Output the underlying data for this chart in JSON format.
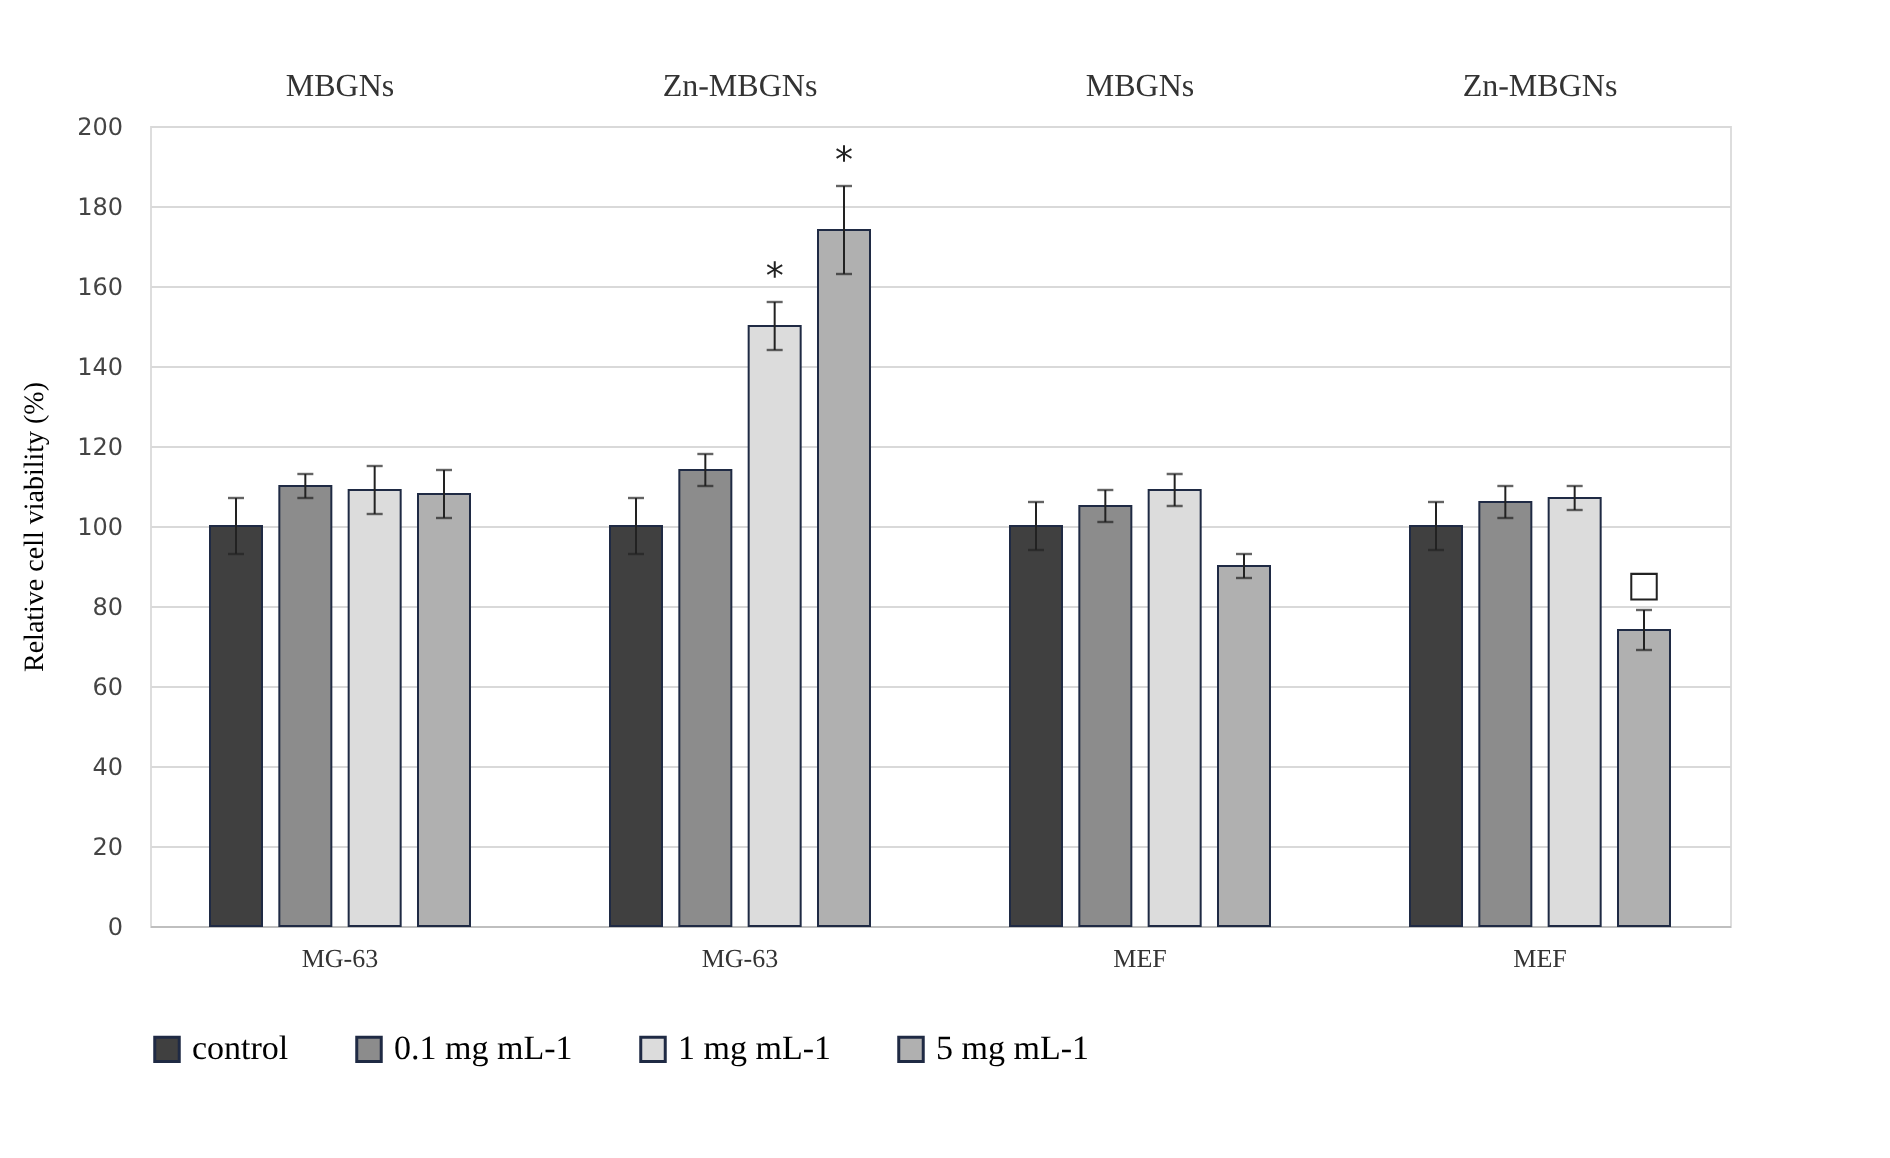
{
  "chart_data": {
    "type": "bar",
    "ylabel": "Relative cell viability (%)",
    "categories": [
      "MG-63",
      "MG-63",
      "MEF",
      "MEF"
    ],
    "series": [
      {
        "name": "control",
        "color": "#404040",
        "values": [
          100,
          100,
          100,
          100
        ],
        "errors": [
          7,
          7,
          6,
          6
        ]
      },
      {
        "name": "0.1 mg mL-1",
        "color": "#8c8c8c",
        "values": [
          110,
          114,
          105,
          106
        ],
        "errors": [
          3,
          4,
          4,
          4
        ]
      },
      {
        "name": "1 mg mL-1",
        "color": "#dcdcdc",
        "values": [
          109,
          150,
          109,
          107
        ],
        "errors": [
          6,
          6,
          4,
          3
        ],
        "value_labels": [
          null,
          "*",
          null,
          null
        ]
      },
      {
        "name": "5 mg mL-1",
        "color": "#b0b0b0",
        "values": [
          108,
          174,
          90,
          74
        ],
        "errors": [
          6,
          11,
          3,
          5
        ],
        "value_labels": [
          null,
          "*",
          null,
          "□"
        ]
      }
    ],
    "ylim": [
      0,
      200
    ],
    "yticks": [
      0,
      20,
      40,
      60,
      80,
      100,
      120,
      140,
      160,
      180,
      200
    ],
    "grid": "y",
    "legend": "bottom",
    "annotations": [
      "MBGNs",
      "Zn-MBGNs",
      "MBGNs",
      "Zn-MBGNs"
    ]
  }
}
